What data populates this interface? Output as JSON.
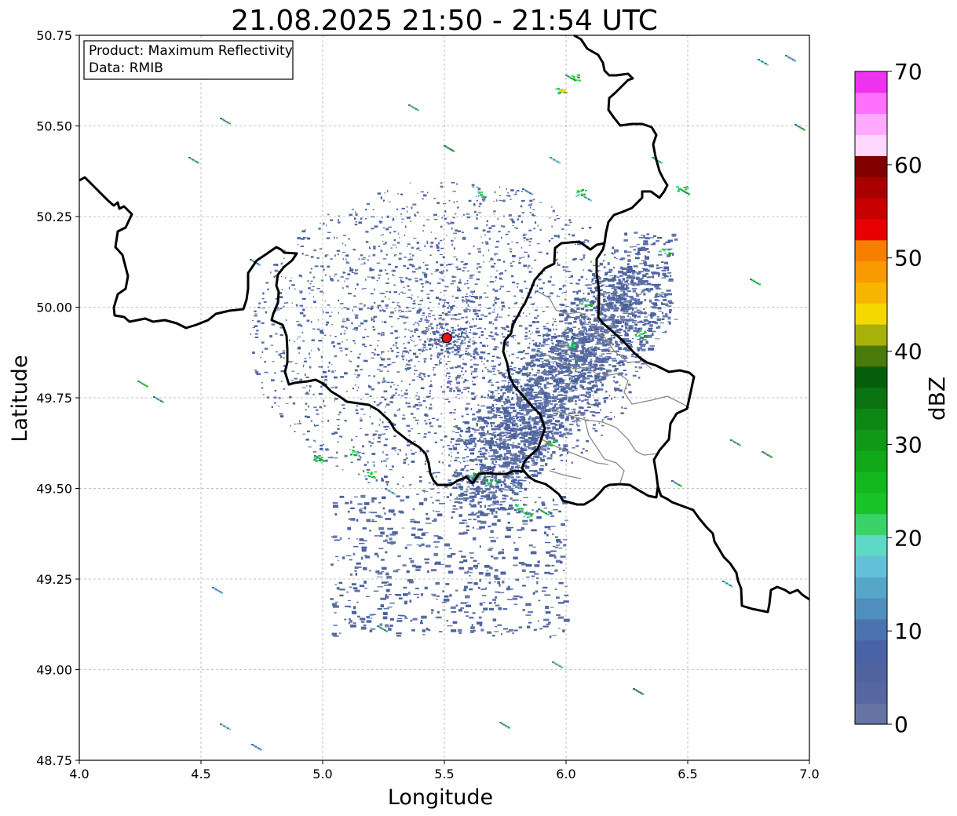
{
  "map": {
    "title": "21.08.2025 21:50 - 21:54 UTC",
    "product_line": "Product: Maximum Reflectivity",
    "data_line": "Data: RMIB",
    "xlabel": "Longitude",
    "ylabel": "Latitude",
    "xlim": [
      4.0,
      7.0
    ],
    "ylim": [
      48.75,
      50.75
    ],
    "x_ticks": [
      "4.0",
      "4.5",
      "5.0",
      "5.5",
      "6.0",
      "6.5",
      "7.0"
    ],
    "y_ticks": [
      "50.75",
      "50.50",
      "50.25",
      "50.00",
      "49.75",
      "49.50",
      "49.25",
      "49.00",
      "48.75"
    ],
    "grid": true,
    "radar_site": {
      "lon": 5.51,
      "lat": 49.915,
      "color": "#e8101a"
    }
  },
  "colorbar": {
    "label": "dBZ",
    "ticks": [
      "0",
      "10",
      "20",
      "30",
      "40",
      "50",
      "60",
      "70"
    ],
    "range": [
      0,
      70
    ],
    "colors": [
      "#6574a4",
      "#5566a0",
      "#4f63a0",
      "#4963a6",
      "#4b74ae",
      "#4e8fbd",
      "#56a7c7",
      "#63c0d9",
      "#5ed9c6",
      "#3cd26a",
      "#18c428",
      "#12b81d",
      "#11a81a",
      "#0f9916",
      "#0c8714",
      "#0a7312",
      "#065d0c",
      "#4a7a0a",
      "#a8b00a",
      "#f5d800",
      "#f7b400",
      "#f89a00",
      "#f77f00",
      "#e60000",
      "#c80000",
      "#a80000",
      "#800000",
      "#ffd8ff",
      "#ffaaff",
      "#ff70ff",
      "#ee33ee"
    ]
  }
}
